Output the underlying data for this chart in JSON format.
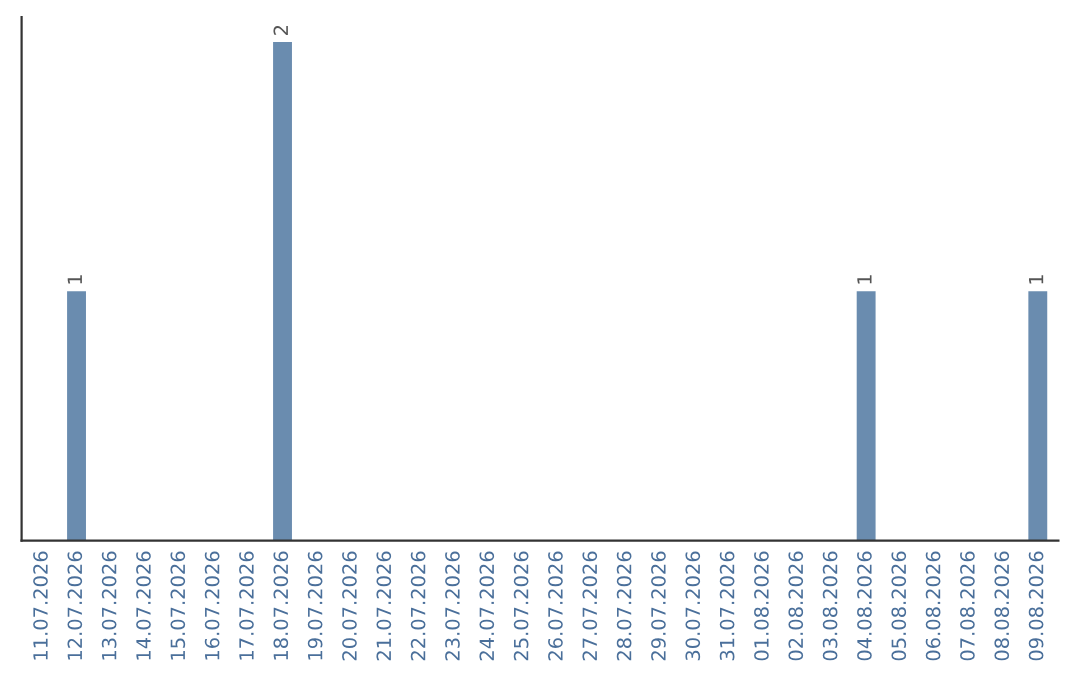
{
  "chart_data": {
    "type": "bar",
    "categories": [
      "11.07.2026",
      "12.07.2026",
      "13.07.2026",
      "14.07.2026",
      "15.07.2026",
      "16.07.2026",
      "17.07.2026",
      "18.07.2026",
      "19.07.2026",
      "20.07.2026",
      "21.07.2026",
      "22.07.2026",
      "23.07.2026",
      "24.07.2026",
      "25.07.2026",
      "26.07.2026",
      "27.07.2026",
      "28.07.2026",
      "29.07.2026",
      "30.07.2026",
      "31.07.2026",
      "01.08.2026",
      "02.08.2026",
      "03.08.2026",
      "04.08.2026",
      "05.08.2026",
      "06.08.2026",
      "07.08.2026",
      "08.08.2026",
      "09.08.2026"
    ],
    "values": [
      0,
      1,
      0,
      0,
      0,
      0,
      0,
      2,
      0,
      0,
      0,
      0,
      0,
      0,
      0,
      0,
      0,
      0,
      0,
      0,
      0,
      0,
      0,
      0,
      1,
      0,
      0,
      0,
      0,
      1
    ],
    "value_labels": [
      null,
      "1",
      null,
      null,
      null,
      null,
      null,
      "2",
      null,
      null,
      null,
      null,
      null,
      null,
      null,
      null,
      null,
      null,
      null,
      null,
      null,
      null,
      null,
      null,
      "1",
      null,
      null,
      null,
      null,
      "1"
    ],
    "color": "#6a8caf",
    "tick_labels": "x",
    "grid": false
  }
}
